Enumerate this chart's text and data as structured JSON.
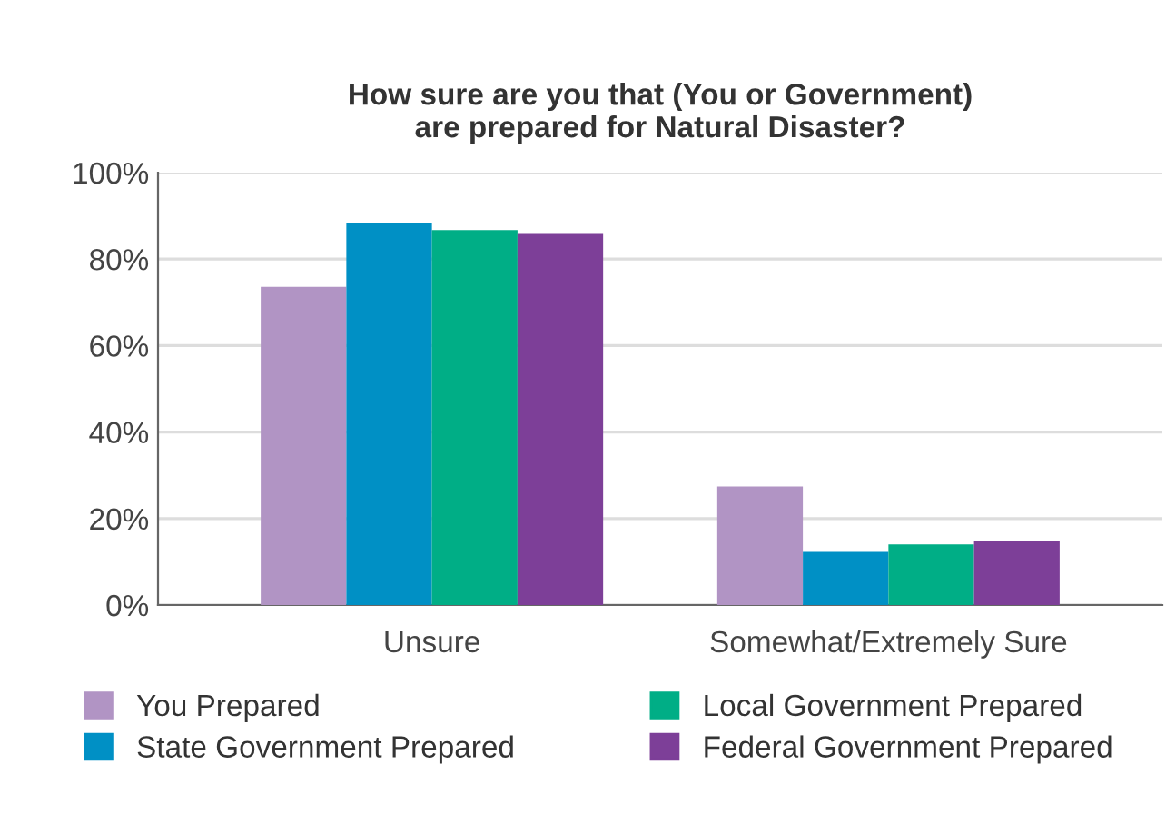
{
  "chart_data": {
    "type": "bar",
    "title": "How sure are you that (You or Government)\nare prepared for Natural Disaster?",
    "categories": [
      "Unsure",
      "Somewhat/Extremely Sure"
    ],
    "series": [
      {
        "name": "You Prepared",
        "color": "#b194c4",
        "values": [
          73.6,
          27.4
        ]
      },
      {
        "name": "State Government Prepared",
        "color": "#0090c5",
        "values": [
          88.3,
          12.3
        ]
      },
      {
        "name": "Local Government Prepared",
        "color": "#00ae86",
        "values": [
          86.7,
          14.0
        ]
      },
      {
        "name": "Federal Government Prepared",
        "color": "#7d3f98",
        "values": [
          85.8,
          14.8
        ]
      }
    ],
    "ylim": [
      0,
      100
    ],
    "yticks": [
      {
        "value": 0,
        "label": "0%"
      },
      {
        "value": 20,
        "label": "20%"
      },
      {
        "value": 40,
        "label": "40%"
      },
      {
        "value": 60,
        "label": "60%"
      },
      {
        "value": 80,
        "label": "80%"
      },
      {
        "value": 100,
        "label": "100%"
      }
    ],
    "grid": "y",
    "legend": "bottom"
  }
}
